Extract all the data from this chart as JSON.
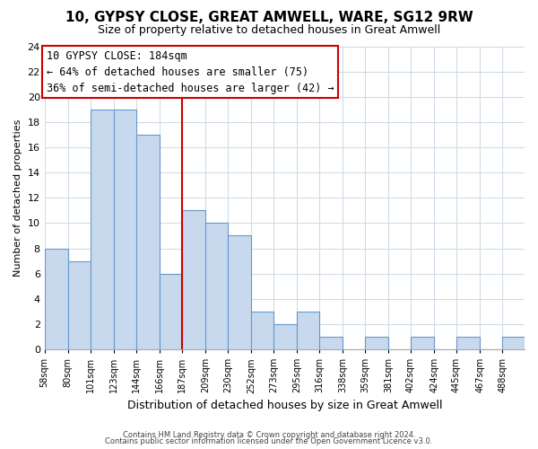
{
  "title": "10, GYPSY CLOSE, GREAT AMWELL, WARE, SG12 9RW",
  "subtitle": "Size of property relative to detached houses in Great Amwell",
  "xlabel": "Distribution of detached houses by size in Great Amwell",
  "ylabel": "Number of detached properties",
  "bar_edges": [
    58,
    80,
    101,
    123,
    144,
    166,
    187,
    209,
    230,
    252,
    273,
    295,
    316,
    338,
    359,
    381,
    402,
    424,
    445,
    467,
    488
  ],
  "bar_heights": [
    8,
    7,
    19,
    19,
    17,
    6,
    11,
    10,
    9,
    3,
    2,
    3,
    1,
    0,
    1,
    0,
    1,
    0,
    1,
    0,
    1
  ],
  "bar_color": "#c8d9ee",
  "bar_edge_color": "#6699cc",
  "vline_x": 187,
  "vline_color": "#cc0000",
  "annotation_title": "10 GYPSY CLOSE: 184sqm",
  "annotation_line1": "← 64% of detached houses are smaller (75)",
  "annotation_line2": "36% of semi-detached houses are larger (42) →",
  "annotation_box_facecolor": "#ffffff",
  "annotation_box_edgecolor": "#cc0000",
  "tick_labels": [
    "58sqm",
    "80sqm",
    "101sqm",
    "123sqm",
    "144sqm",
    "166sqm",
    "187sqm",
    "209sqm",
    "230sqm",
    "252sqm",
    "273sqm",
    "295sqm",
    "316sqm",
    "338sqm",
    "359sqm",
    "381sqm",
    "402sqm",
    "424sqm",
    "445sqm",
    "467sqm",
    "488sqm"
  ],
  "ylim": [
    0,
    24
  ],
  "yticks": [
    0,
    2,
    4,
    6,
    8,
    10,
    12,
    14,
    16,
    18,
    20,
    22,
    24
  ],
  "footnote1": "Contains HM Land Registry data © Crown copyright and database right 2024.",
  "footnote2": "Contains public sector information licensed under the Open Government Licence v3.0.",
  "bg_color": "#ffffff",
  "plot_bg_color": "#ffffff",
  "grid_color": "#d0dce8",
  "title_fontsize": 11,
  "subtitle_fontsize": 9,
  "ylabel_fontsize": 8,
  "xlabel_fontsize": 9,
  "ytick_fontsize": 8,
  "xtick_fontsize": 7
}
